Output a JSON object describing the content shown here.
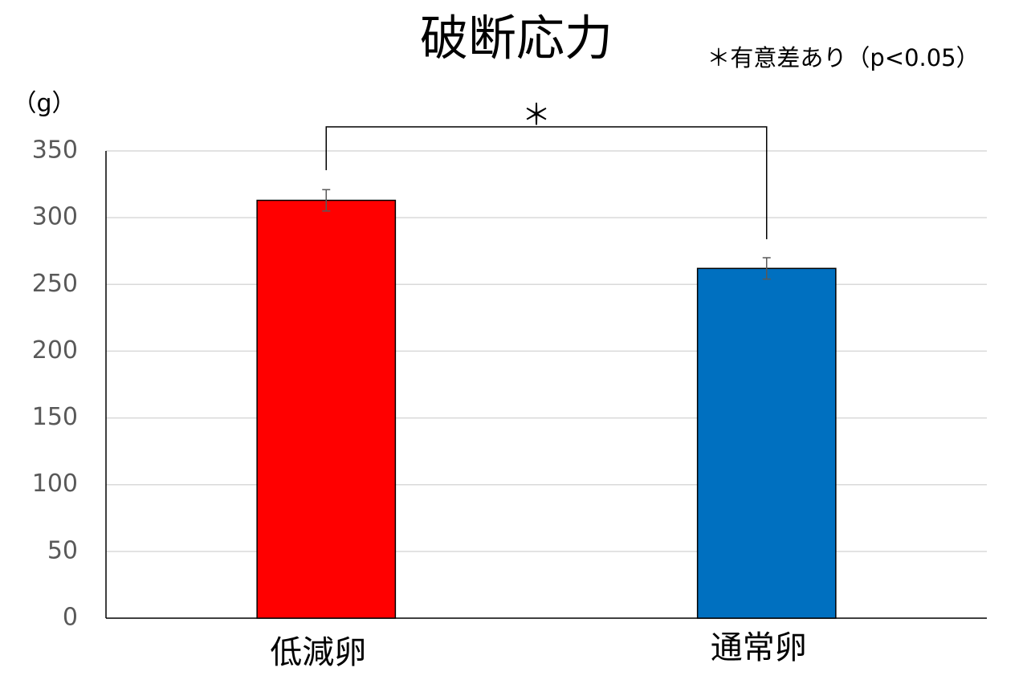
{
  "chart_data": {
    "type": "bar",
    "title": "破断応力",
    "note": "＊有意差あり（p<0.05）",
    "y_label": "（g）",
    "significance": "＊",
    "categories": [
      "低減卵",
      "通常卵"
    ],
    "values": [
      313,
      262
    ],
    "errors": [
      8,
      8
    ],
    "colors": [
      "#ff0000",
      "#0070c0"
    ],
    "ylim": [
      0,
      350
    ],
    "yticks": [
      0,
      50,
      100,
      150,
      200,
      250,
      300,
      350
    ],
    "grid": true
  }
}
